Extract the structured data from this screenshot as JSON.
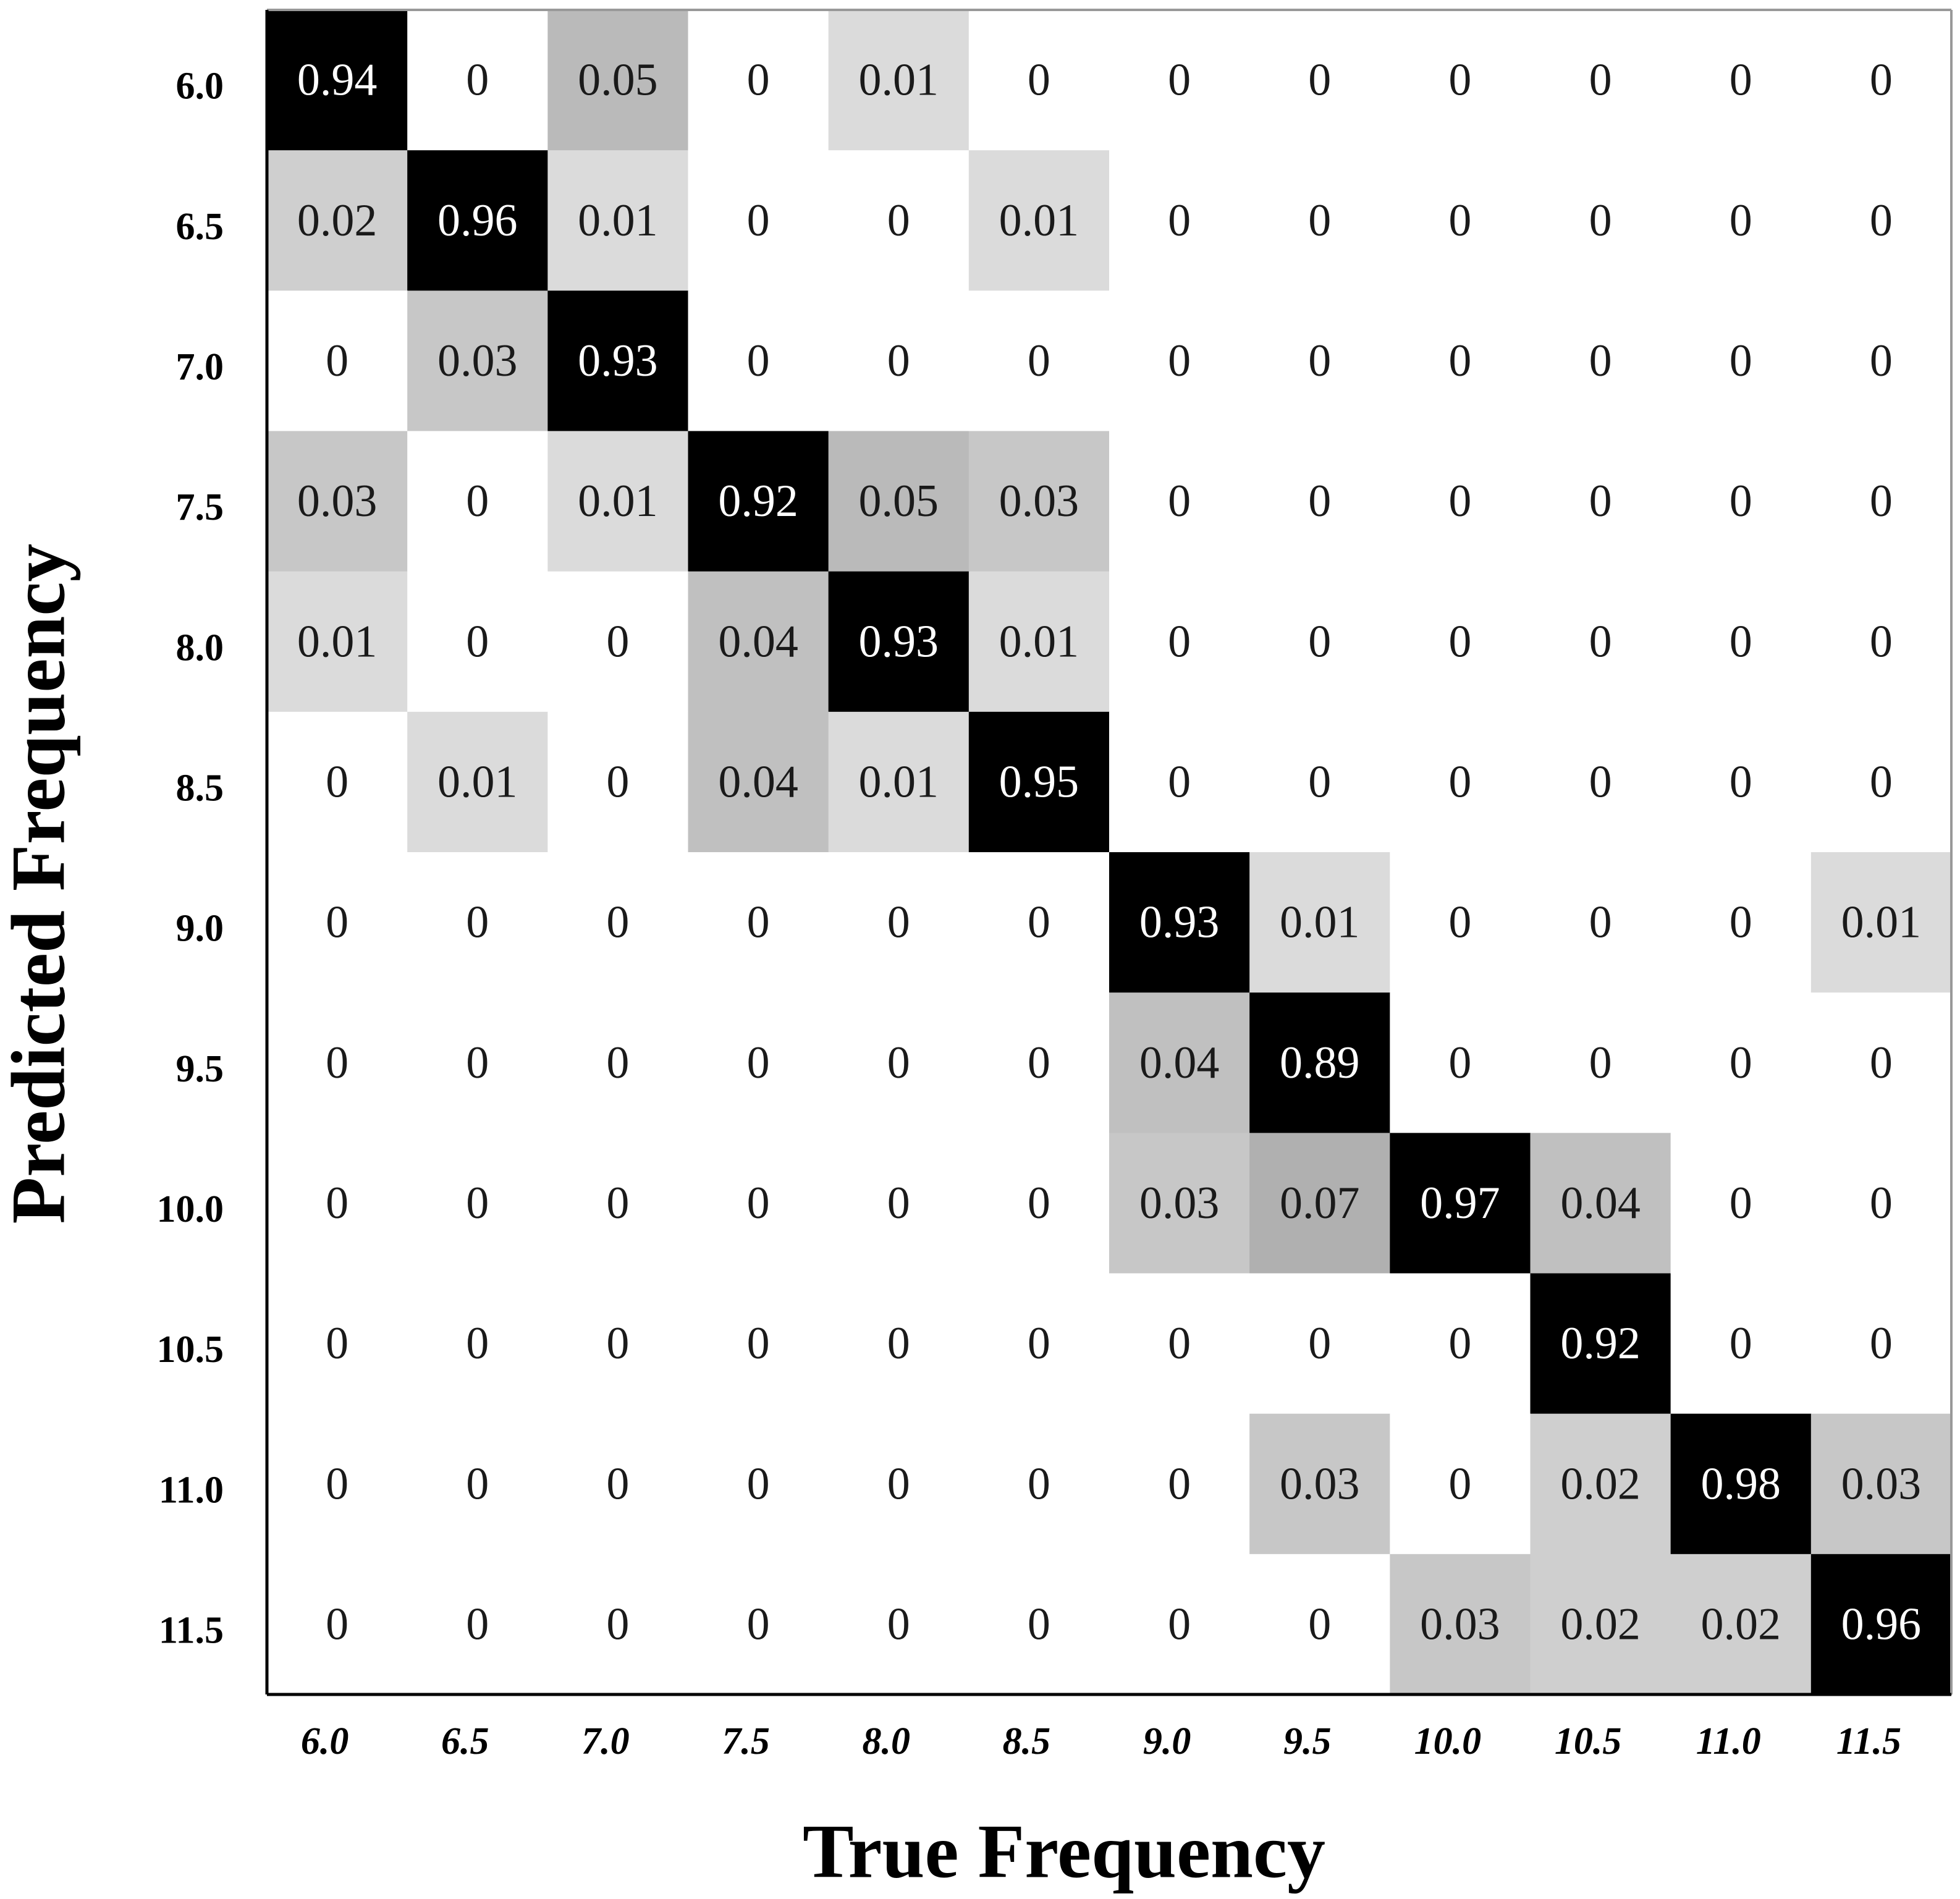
{
  "chart_data": {
    "type": "heatmap",
    "title": "",
    "xlabel": "True Frequency",
    "ylabel": "Predicted Frequency",
    "x_categories": [
      "6.0",
      "6.5",
      "7.0",
      "7.5",
      "8.0",
      "8.5",
      "9.0",
      "9.5",
      "10.0",
      "10.5",
      "11.0",
      "11.5"
    ],
    "y_categories": [
      "6.0",
      "6.5",
      "7.0",
      "7.5",
      "8.0",
      "8.5",
      "9.0",
      "9.5",
      "10.0",
      "10.5",
      "11.0",
      "11.5"
    ],
    "matrix": [
      [
        "0.94",
        "0",
        "0.05",
        "0",
        "0.01",
        "0",
        "0",
        "0",
        "0",
        "0",
        "0",
        "0"
      ],
      [
        "0.02",
        "0.96",
        "0.01",
        "0",
        "0",
        "0.01",
        "0",
        "0",
        "0",
        "0",
        "0",
        "0"
      ],
      [
        "0",
        "0.03",
        "0.93",
        "0",
        "0",
        "0",
        "0",
        "0",
        "0",
        "0",
        "0",
        "0"
      ],
      [
        "0.03",
        "0",
        "0.01",
        "0.92",
        "0.05",
        "0.03",
        "0",
        "0",
        "0",
        "0",
        "0",
        "0"
      ],
      [
        "0.01",
        "0",
        "0",
        "0.04",
        "0.93",
        "0.01",
        "0",
        "0",
        "0",
        "0",
        "0",
        "0"
      ],
      [
        "0",
        "0.01",
        "0",
        "0.04",
        "0.01",
        "0.95",
        "0",
        "0",
        "0",
        "0",
        "0",
        "0"
      ],
      [
        "0",
        "0",
        "0",
        "0",
        "0",
        "0",
        "0.93",
        "0.01",
        "0",
        "0",
        "0",
        "0.01"
      ],
      [
        "0",
        "0",
        "0",
        "0",
        "0",
        "0",
        "0.04",
        "0.89",
        "0",
        "0",
        "0",
        "0"
      ],
      [
        "0",
        "0",
        "0",
        "0",
        "0",
        "0",
        "0.03",
        "0.07",
        "0.97",
        "0.04",
        "0",
        "0"
      ],
      [
        "0",
        "0",
        "0",
        "0",
        "0",
        "0",
        "0",
        "0",
        "0",
        "0.92",
        "0",
        "0"
      ],
      [
        "0",
        "0",
        "0",
        "0",
        "0",
        "0",
        "0",
        "0.03",
        "0",
        "0.02",
        "0.98",
        "0.03"
      ],
      [
        "0",
        "0",
        "0",
        "0",
        "0",
        "0",
        "0",
        "0",
        "0.03",
        "0.02",
        "0.02",
        "0.96"
      ]
    ],
    "colormap": "grayscale (white = 0, black = 1)",
    "grid": false,
    "legend": "none"
  }
}
